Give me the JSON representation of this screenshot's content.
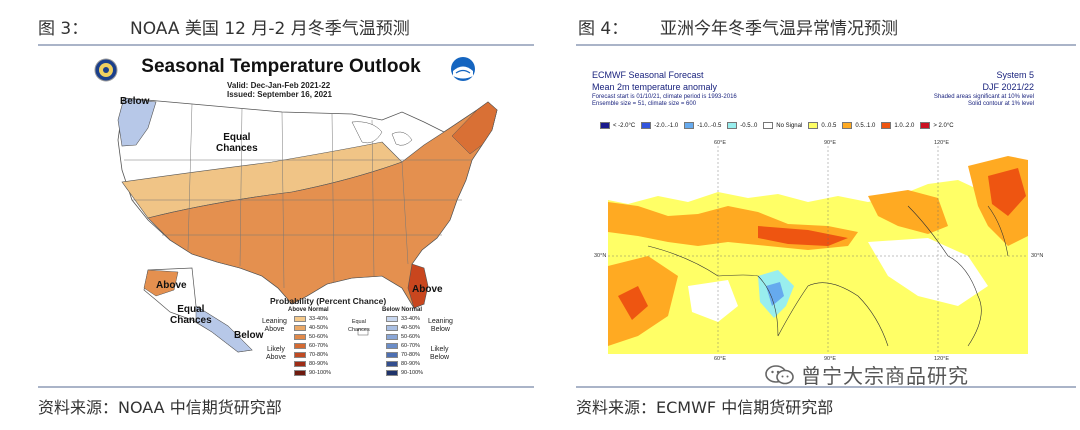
{
  "left": {
    "figure_number": "图 3：",
    "figure_title": "NOAA 美国 12 月-2 月冬季气温预测",
    "source": "资料来源：NOAA  中信期货研究部",
    "map": {
      "title": "Seasonal Temperature Outlook",
      "valid": "Valid:  Dec-Jan-Feb 2021-22",
      "issued": "Issued:  September 16, 2021",
      "labels": {
        "below_nw": "Below",
        "equal_chances": "Equal\nChances",
        "above_fl": "Above",
        "above_ak": "Above",
        "equal_chances_ak": "Equal\nChances",
        "below_ak": "Below"
      },
      "legend": {
        "title": "Probability (Percent Chance)",
        "above_normal": "Above Normal",
        "below_normal": "Below Normal",
        "above_rows": [
          "33-40%",
          "40-50%",
          "50-60%",
          "60-70%",
          "70-80%",
          "80-90%",
          "90-100%"
        ],
        "below_rows": [
          "33-40%",
          "40-50%",
          "50-60%",
          "60-70%",
          "70-80%",
          "80-90%",
          "90-100%"
        ],
        "equal_chances": "Equal\nChances",
        "leaning_above": "Leaning\nAbove",
        "likely_above": "Likely\nAbove",
        "leaning_below": "Leaning\nBelow",
        "likely_below": "Likely\nBelow"
      },
      "colors": {
        "above": [
          "#f5c98a",
          "#eaa866",
          "#e0894a",
          "#d46a32",
          "#c04a22",
          "#9e2c16",
          "#6e1a0e"
        ],
        "below": [
          "#c7d6ee",
          "#a9bfe3",
          "#8aa6d6",
          "#6b8dc8",
          "#4d6fb2",
          "#334e8f",
          "#1f336a"
        ]
      }
    }
  },
  "right": {
    "figure_number": "图 4：",
    "figure_title": "亚洲今年冬季气温异常情况预测",
    "source": "资料来源：ECMWF  中信期货研究部",
    "map": {
      "title1": "ECMWF Seasonal Forecast",
      "title2": "Mean 2m temperature anomaly",
      "title3": "Forecast start is 01/10/21, climate period is 1993-2016",
      "title4": "Ensemble size = 51, climate size = 600",
      "right1": "System 5",
      "right2": "DJF 2021/22",
      "right3": "Shaded areas significant at 10% level",
      "right4": "Solid contour at 1% level",
      "legend": [
        {
          "label": "< -2.0°C",
          "color": "#1a1a8c"
        },
        {
          "label": "-2.0..-1.0",
          "color": "#3355dd"
        },
        {
          "label": "-1.0..-0.5",
          "color": "#66aaee"
        },
        {
          "label": "-0.5..0",
          "color": "#99eeee"
        },
        {
          "label": "No Signal",
          "color": "#ffffff"
        },
        {
          "label": "0..0.5",
          "color": "#ffff66"
        },
        {
          "label": "0.5..1.0",
          "color": "#ffaa22"
        },
        {
          "label": "1.0..2.0",
          "color": "#ee5511"
        },
        {
          "label": "> 2.0°C",
          "color": "#cc1122"
        }
      ],
      "axis": {
        "top": [
          "60°E",
          "90°E",
          "120°E"
        ],
        "bottom": [
          "60°E",
          "90°E",
          "120°E"
        ],
        "left": "30°N",
        "right": "30°N"
      }
    },
    "watermark": "曾宁大宗商品研究"
  }
}
